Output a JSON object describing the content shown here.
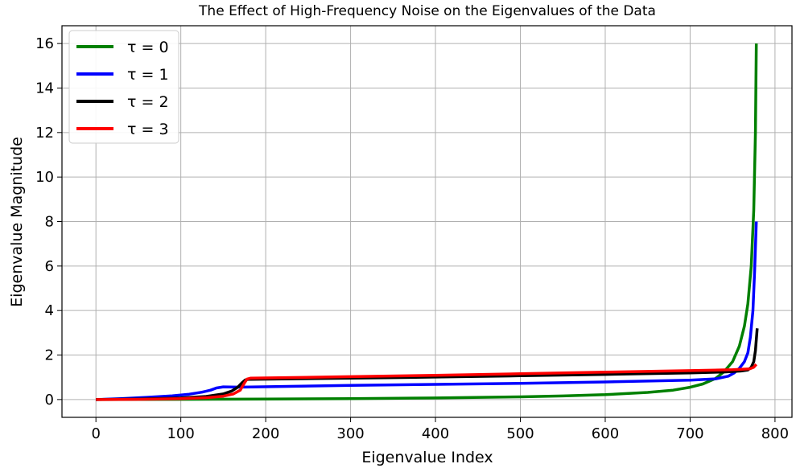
{
  "chart_data": {
    "type": "line",
    "title": "The Effect of High-Frequency Noise on the Eigenvalues of the Data",
    "xlabel": "Eigenvalue Index",
    "ylabel": "Eigenvalue Magnitude",
    "xlim": [
      -40,
      820
    ],
    "ylim": [
      -0.8,
      16.8
    ],
    "xticks": [
      0,
      100,
      200,
      300,
      400,
      500,
      600,
      700,
      800
    ],
    "yticks": [
      0,
      2,
      4,
      6,
      8,
      10,
      12,
      14,
      16
    ],
    "grid": true,
    "legend_position": "top-left",
    "series": [
      {
        "name": "τ = 0",
        "color": "#008000",
        "points": [
          [
            0,
            0
          ],
          [
            100,
            0.01
          ],
          [
            200,
            0.02
          ],
          [
            300,
            0.04
          ],
          [
            400,
            0.07
          ],
          [
            500,
            0.12
          ],
          [
            550,
            0.16
          ],
          [
            600,
            0.22
          ],
          [
            650,
            0.32
          ],
          [
            680,
            0.42
          ],
          [
            700,
            0.55
          ],
          [
            715,
            0.7
          ],
          [
            730,
            0.95
          ],
          [
            740,
            1.25
          ],
          [
            750,
            1.7
          ],
          [
            758,
            2.4
          ],
          [
            764,
            3.3
          ],
          [
            768,
            4.3
          ],
          [
            772,
            6.0
          ],
          [
            775,
            8.5
          ],
          [
            777,
            12.0
          ],
          [
            778,
            16.0
          ]
        ]
      },
      {
        "name": "τ = 1",
        "color": "#0000ff",
        "points": [
          [
            0,
            0
          ],
          [
            30,
            0.04
          ],
          [
            60,
            0.1
          ],
          [
            90,
            0.17
          ],
          [
            110,
            0.24
          ],
          [
            125,
            0.33
          ],
          [
            135,
            0.42
          ],
          [
            142,
            0.52
          ],
          [
            150,
            0.57
          ],
          [
            165,
            0.56
          ],
          [
            175,
            0.56
          ],
          [
            300,
            0.64
          ],
          [
            400,
            0.68
          ],
          [
            500,
            0.73
          ],
          [
            600,
            0.79
          ],
          [
            700,
            0.87
          ],
          [
            730,
            0.93
          ],
          [
            745,
            1.05
          ],
          [
            752,
            1.2
          ],
          [
            758,
            1.4
          ],
          [
            764,
            1.7
          ],
          [
            768,
            2.1
          ],
          [
            771,
            2.8
          ],
          [
            774,
            4.0
          ],
          [
            776,
            5.8
          ],
          [
            778,
            8.0
          ]
        ]
      },
      {
        "name": "τ = 2",
        "color": "#000000",
        "points": [
          [
            0,
            0
          ],
          [
            50,
            0.02
          ],
          [
            100,
            0.07
          ],
          [
            130,
            0.14
          ],
          [
            150,
            0.25
          ],
          [
            160,
            0.38
          ],
          [
            167,
            0.55
          ],
          [
            172,
            0.75
          ],
          [
            176,
            0.88
          ],
          [
            180,
            0.91
          ],
          [
            300,
            0.96
          ],
          [
            400,
            1.01
          ],
          [
            500,
            1.07
          ],
          [
            600,
            1.13
          ],
          [
            700,
            1.2
          ],
          [
            740,
            1.24
          ],
          [
            760,
            1.28
          ],
          [
            768,
            1.33
          ],
          [
            772,
            1.45
          ],
          [
            775,
            1.7
          ],
          [
            777,
            2.2
          ],
          [
            778,
            2.7
          ],
          [
            779,
            3.2
          ]
        ]
      },
      {
        "name": "τ = 3",
        "color": "#ff0000",
        "points": [
          [
            0,
            0
          ],
          [
            50,
            0.01
          ],
          [
            100,
            0.04
          ],
          [
            130,
            0.08
          ],
          [
            150,
            0.15
          ],
          [
            162,
            0.25
          ],
          [
            170,
            0.42
          ],
          [
            175,
            0.75
          ],
          [
            178,
            0.92
          ],
          [
            182,
            0.96
          ],
          [
            300,
            1.03
          ],
          [
            400,
            1.09
          ],
          [
            500,
            1.16
          ],
          [
            600,
            1.23
          ],
          [
            700,
            1.3
          ],
          [
            750,
            1.34
          ],
          [
            770,
            1.38
          ],
          [
            775,
            1.45
          ],
          [
            778,
            1.58
          ]
        ]
      }
    ]
  }
}
